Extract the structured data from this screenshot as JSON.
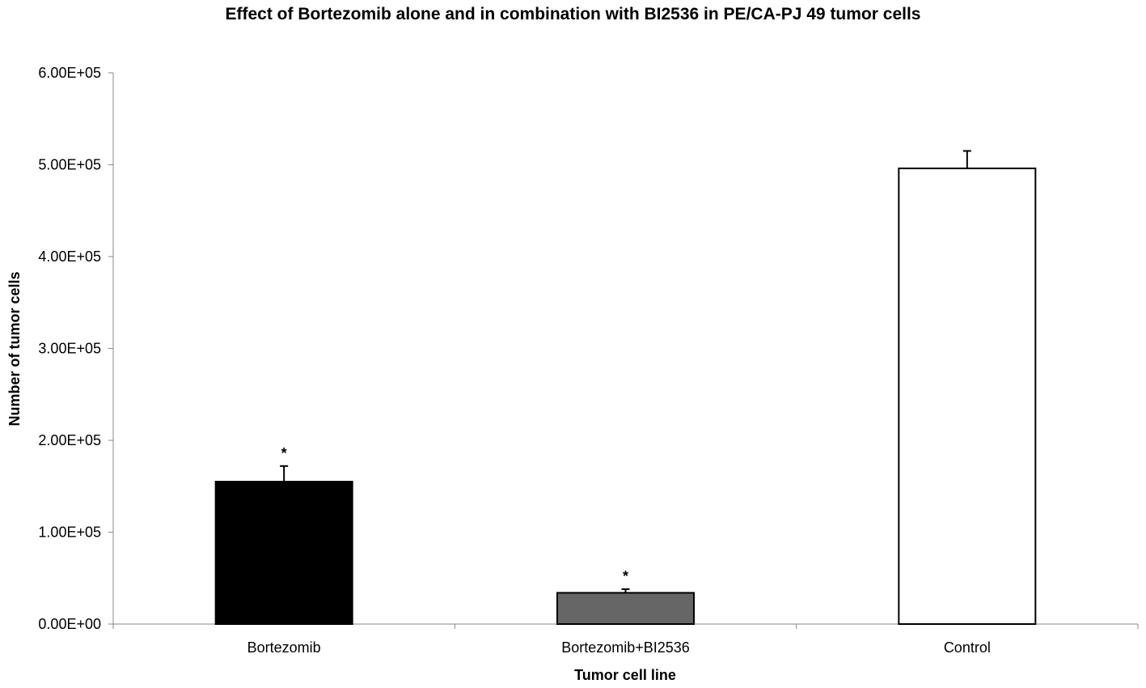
{
  "chart_data": {
    "type": "bar",
    "title": "Effect of Bortezomib alone and in combination with BI2536 in PE/CA-PJ 49 tumor cells",
    "xlabel": "Tumor cell line",
    "ylabel": "Number of tumor cells",
    "ylim": [
      0,
      600000
    ],
    "yticks": [
      {
        "value": 0,
        "label": "0.00E+00"
      },
      {
        "value": 100000,
        "label": "1.00E+05"
      },
      {
        "value": 200000,
        "label": "2.00E+05"
      },
      {
        "value": 300000,
        "label": "3.00E+05"
      },
      {
        "value": 400000,
        "label": "4.00E+05"
      },
      {
        "value": 500000,
        "label": "5.00E+05"
      },
      {
        "value": 600000,
        "label": "6.00E+05"
      }
    ],
    "categories": [
      "Bortezomib",
      "Bortezomib+BI2536",
      "Control"
    ],
    "values": [
      155000,
      34000,
      496000
    ],
    "error_plus": [
      17000,
      4000,
      19000
    ],
    "colors": [
      "#000000",
      "#666666",
      "#ffffff"
    ],
    "annotations": [
      "*",
      "*",
      ""
    ],
    "grid": false,
    "legend": "none"
  }
}
